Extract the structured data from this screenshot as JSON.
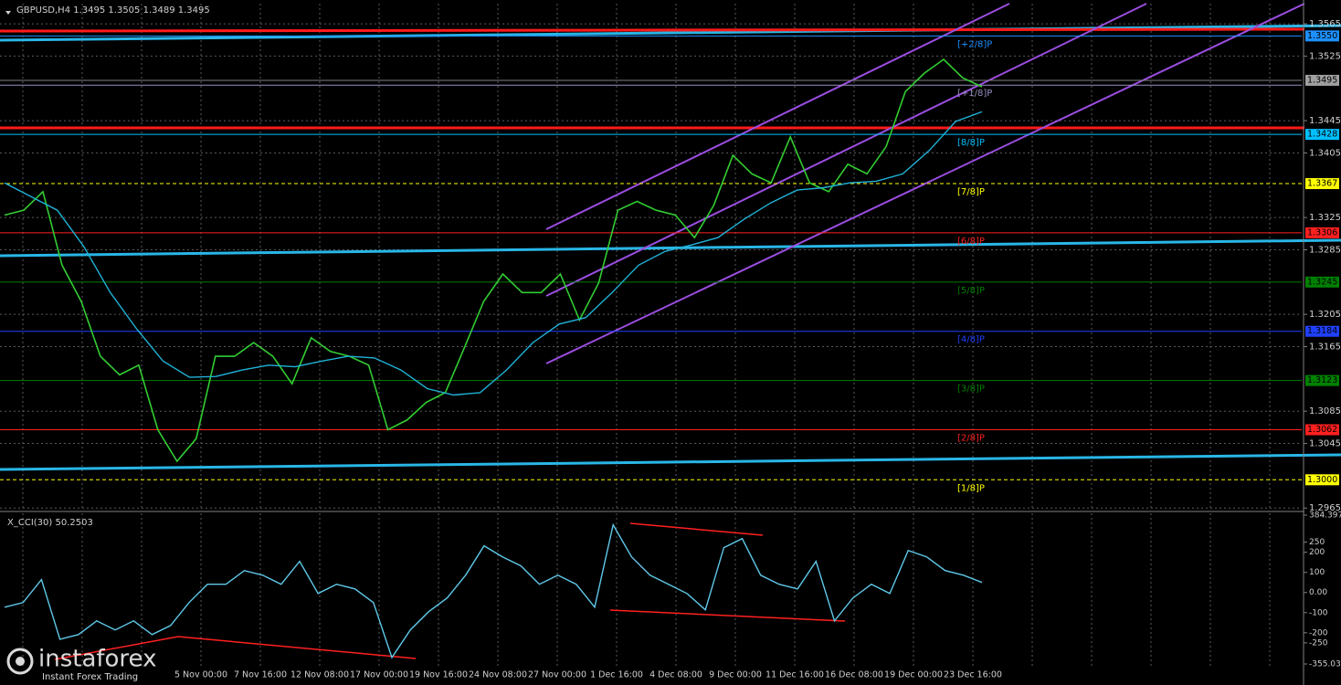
{
  "chart_data": [
    {
      "type": "line",
      "title": "GBPUSD,H4  1.3495 1.3505 1.3489 1.3495",
      "ylim": [
        1.2963,
        1.359
      ],
      "yticks": [
        1.3565,
        1.3525,
        1.3445,
        1.3405,
        1.3325,
        1.3285,
        1.3205,
        1.3165,
        1.3085,
        1.3045,
        1.2965
      ],
      "grid": true,
      "series": [
        {
          "color": "#32cd32",
          "values": [
            1.3328,
            1.3334,
            1.3357,
            1.3266,
            1.3221,
            1.3153,
            1.313,
            1.3142,
            1.3062,
            1.3023,
            1.3051,
            1.3153,
            1.3153,
            1.317,
            1.3153,
            1.3119,
            1.3176,
            1.3159,
            1.3153,
            1.3142,
            1.3062,
            1.3074,
            1.3096,
            1.3108,
            1.3164,
            1.3221,
            1.3255,
            1.3232,
            1.3232,
            1.3255,
            1.3198,
            1.3244,
            1.3334,
            1.3345,
            1.3334,
            1.3328,
            1.33,
            1.334,
            1.3402,
            1.3379,
            1.3368,
            1.3425,
            1.3368,
            1.3357,
            1.3391,
            1.3379,
            1.3413,
            1.3481,
            1.3504,
            1.3521,
            1.3498,
            1.3487
          ]
        },
        {
          "color": "#20b2d8",
          "values": [
            1.3368,
            1.3351,
            1.3334,
            1.3289,
            1.3232,
            1.3187,
            1.3147,
            1.3127,
            1.3128,
            1.3136,
            1.3142,
            1.314,
            1.3147,
            1.3153,
            1.3151,
            1.3136,
            1.3113,
            1.3105,
            1.3108,
            1.3136,
            1.317,
            1.3193,
            1.3201,
            1.3232,
            1.3266,
            1.3283,
            1.3291,
            1.33,
            1.3323,
            1.3343,
            1.3359,
            1.3362,
            1.3368,
            1.337,
            1.3379,
            1.3408,
            1.3444,
            1.3456
          ]
        }
      ],
      "current_price": 1.3495,
      "levels": [
        {
          "label": "[+2/8]P",
          "value": 1.355,
          "price_label": "1.3550",
          "color": "#1e90ff"
        },
        {
          "label": "[+1/8]P",
          "value": 1.3489,
          "color": "#9a8fc0"
        },
        {
          "label": "[8/8]P",
          "value": 1.3428,
          "price_label": "1.3428",
          "color": "#00bfff"
        },
        {
          "label": "[7/8]P",
          "value": 1.3367,
          "price_label": "1.3367",
          "color": "#ffff00"
        },
        {
          "label": "[6/8]P",
          "value": 1.3306,
          "price_label": "1.3306",
          "color": "#ff2020"
        },
        {
          "label": "[5/8]P",
          "value": 1.3245,
          "price_label": "1.3245",
          "color": "#008000"
        },
        {
          "label": "[4/8]P",
          "value": 1.3184,
          "price_label": "1.3184",
          "color": "#2040ff"
        },
        {
          "label": "[3/8]P",
          "value": 1.3123,
          "price_label": "1.3123",
          "color": "#008000"
        },
        {
          "label": "[2/8]P",
          "value": 1.3062,
          "price_label": "1.3062",
          "color": "#ff2020"
        },
        {
          "label": "[1/8]P",
          "value": 1.3,
          "price_label": "1.3000",
          "color": "#ffff00"
        }
      ]
    },
    {
      "type": "line",
      "title": "X_CCI(30) 50.2503",
      "ylim": [
        -355.0318,
        384.3971
      ],
      "yticks": [
        384.3971,
        250,
        200,
        100,
        {
          "value": 0,
          "label": "0.00"
        },
        -100,
        -200,
        -250,
        -355.0318
      ],
      "series": [
        {
          "color": "#5fc8e8",
          "values": [
            -73,
            -50,
            64,
            -232,
            -209,
            -141,
            -186,
            -141,
            -209,
            -164,
            -50,
            41,
            41,
            109,
            86,
            41,
            155,
            -5,
            41,
            18,
            -50,
            -323,
            -186,
            -95,
            -27,
            86,
            232,
            177,
            132,
            41,
            86,
            41,
            -73,
            336,
            177,
            86,
            41,
            -5,
            -86,
            223,
            268,
            86,
            41,
            18,
            155,
            -141,
            -27,
            41,
            -5,
            209,
            177,
            109,
            86,
            50
          ]
        }
      ],
      "x_labels": [
        "5 Nov 00:00",
        "7 Nov 16:00",
        "12 Nov 08:00",
        "17 Nov 00:00",
        "19 Nov 16:00",
        "24 Nov 08:00",
        "27 Nov 00:00",
        "1 Dec 16:00",
        "4 Dec 08:00",
        "9 Dec 00:00",
        "11 Dec 16:00",
        "16 Dec 08:00",
        "19 Dec 00:00",
        "23 Dec 16:00"
      ]
    }
  ],
  "watermark": {
    "brand": "instaforex",
    "tagline": "Instant Forex Trading"
  }
}
